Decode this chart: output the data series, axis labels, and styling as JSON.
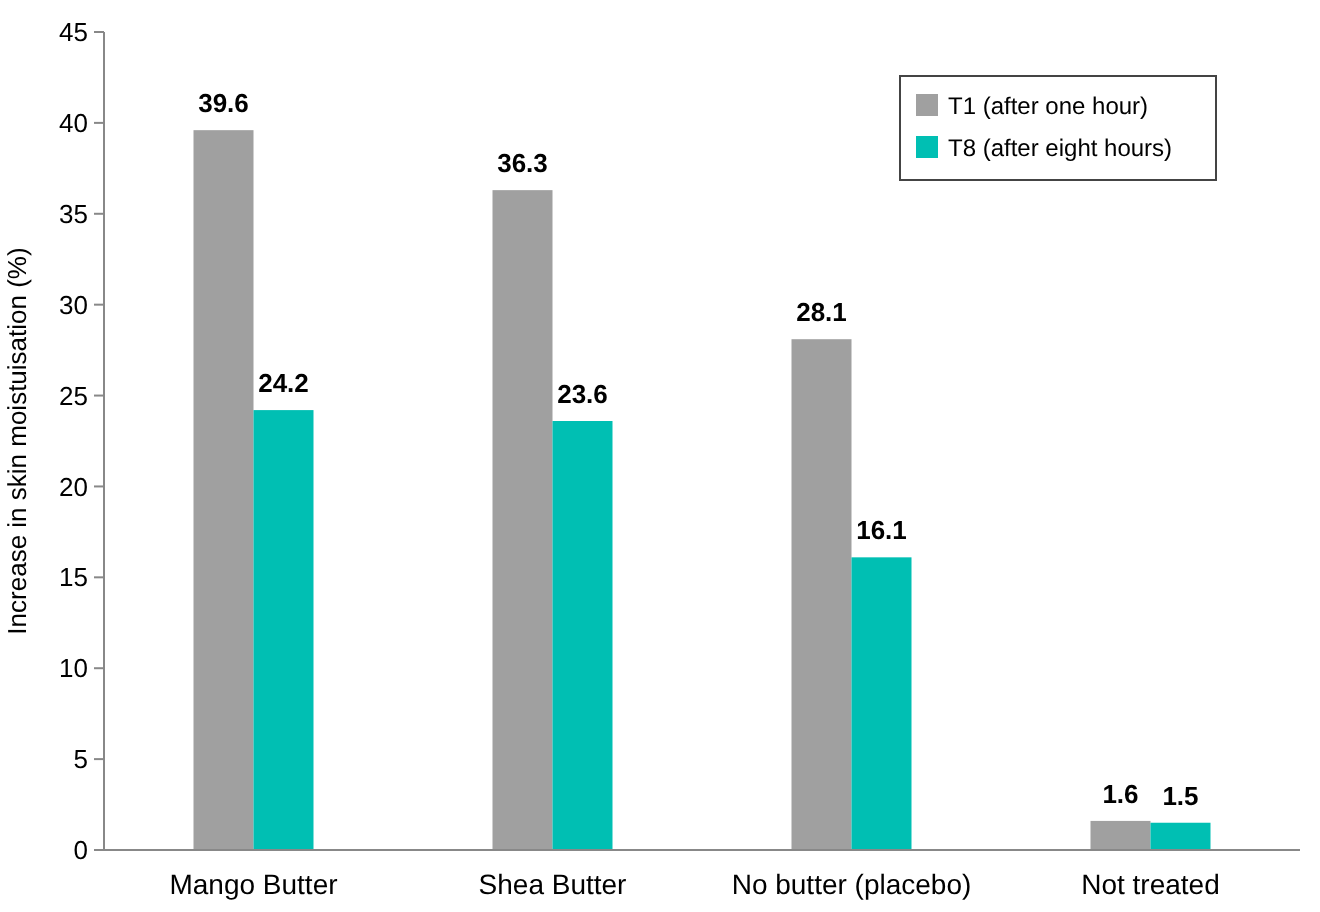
{
  "chart_data": {
    "type": "bar",
    "ylabel": "Increase in skin moistuisation (%)",
    "categories": [
      "Mango Butter",
      "Shea Butter",
      "No butter (placebo)",
      "Not treated"
    ],
    "series": [
      {
        "name": "T1 (after one hour)",
        "color": "#a0a0a0",
        "values": [
          39.6,
          36.3,
          28.1,
          1.6
        ]
      },
      {
        "name": "T8 (after eight hours)",
        "color": "#00bfb3",
        "values": [
          24.2,
          23.6,
          16.1,
          1.5
        ]
      }
    ],
    "ylim": [
      0,
      45
    ],
    "yticks": [
      0,
      5,
      10,
      15,
      20,
      25,
      30,
      35,
      40,
      45
    ],
    "grid": false,
    "legend": "top right",
    "data_labels": true
  }
}
